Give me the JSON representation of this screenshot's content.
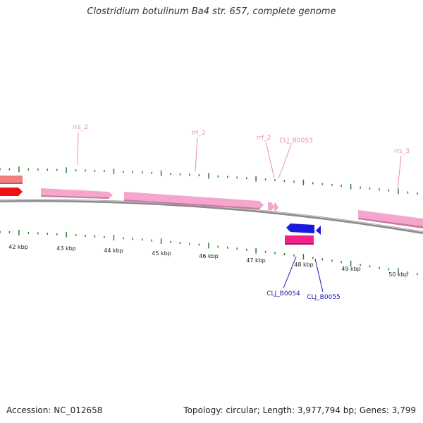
{
  "title": "Clostridium botulinum Ba4 str. 657, complete genome",
  "footer": {
    "accession": "Accession: NC_012658",
    "summary": "Topology: circular; Length: 3,977,794 bp; Genes: 3,799"
  },
  "colors": {
    "backbone": "#888888",
    "ticks": "#2e7d32",
    "rrna": "#f4a6cc",
    "gene_red": "#ee1111",
    "gene_salmon": "#f08080",
    "gene_blue": "#1a1add",
    "gene_magenta": "#ee2288",
    "label_pink": "#e98bb8",
    "label_blue": "#1a1aaa"
  },
  "kbp_labels": [
    "42 kbp",
    "43 kbp",
    "44 kbp",
    "45 kbp",
    "46 kbp",
    "47 kbp",
    "48 kbp",
    "49 kbp",
    "50 kbp"
  ],
  "feature_labels": {
    "rrs_2": "rrs_2",
    "rrl_2": "rrl_2",
    "rrf_2": "rrf_2",
    "clj_b0053": "CLJ_B0053",
    "rrs_3": "rrs_3",
    "clj_b0054": "CLJ_B0054",
    "clj_b0055": "CLJ_B0055"
  }
}
